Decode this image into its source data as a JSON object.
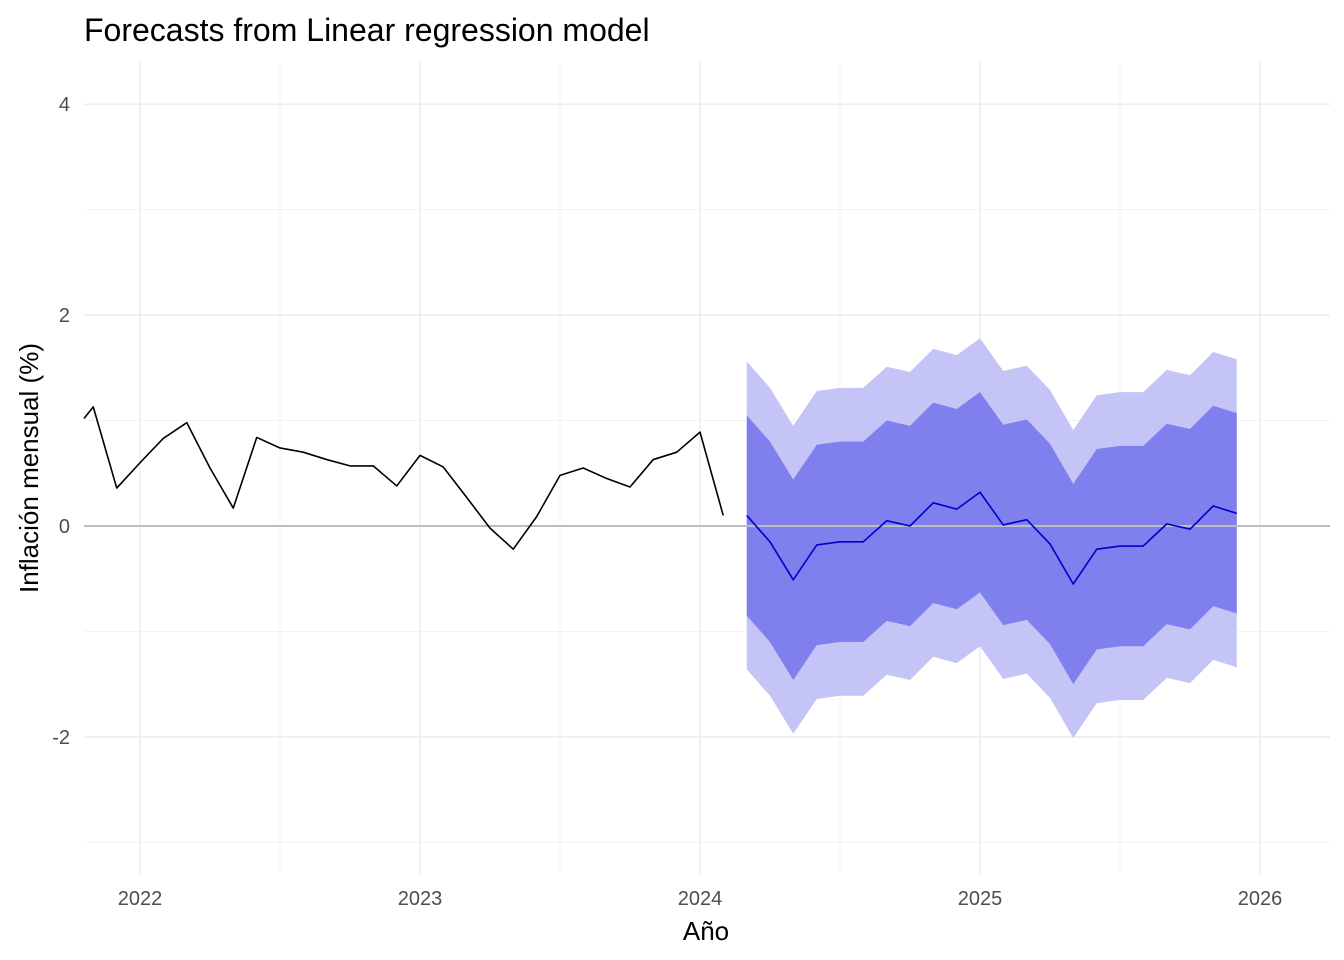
{
  "chart_data": {
    "type": "line",
    "title": "Forecasts from Linear regression model",
    "xlabel": "Año",
    "ylabel": "Inflación mensual (%)",
    "xlim": [
      2021.8,
      2026.25
    ],
    "ylim": [
      -3.3,
      4.4
    ],
    "x_ticks": [
      2022,
      2023,
      2024,
      2025,
      2026
    ],
    "x_tick_labels": [
      "2022",
      "2023",
      "2024",
      "2025",
      "2026"
    ],
    "y_ticks": [
      -2,
      0,
      2,
      4
    ],
    "y_tick_labels": [
      "-2",
      "0",
      "2",
      "4"
    ],
    "grid": true,
    "reference_line_y": 0,
    "colors": {
      "history": "#000000",
      "forecast_mean": "#0000cc",
      "band_80": "#7f7fee",
      "band_95": "#c4c4f6",
      "zero_line": "#bdbdbd"
    },
    "history": {
      "x": [
        2021.8,
        2021.833,
        2021.917,
        2022.0,
        2022.083,
        2022.167,
        2022.25,
        2022.333,
        2022.417,
        2022.5,
        2022.583,
        2022.667,
        2022.75,
        2022.833,
        2022.917,
        2023.0,
        2023.083,
        2023.167,
        2023.25,
        2023.333,
        2023.417,
        2023.5,
        2023.583,
        2023.667,
        2023.75,
        2023.833,
        2023.917,
        2024.0,
        2024.083
      ],
      "values": [
        1.02,
        1.13,
        0.36,
        0.6,
        0.83,
        0.98,
        0.55,
        0.17,
        0.84,
        0.74,
        0.7,
        0.63,
        0.57,
        0.57,
        0.38,
        0.67,
        0.56,
        0.27,
        -0.02,
        -0.22,
        0.09,
        0.48,
        0.55,
        0.45,
        0.37,
        0.63,
        0.7,
        0.89,
        0.1
      ]
    },
    "forecast": {
      "x": [
        2024.167,
        2024.25,
        2024.333,
        2024.417,
        2024.5,
        2024.583,
        2024.667,
        2024.75,
        2024.833,
        2024.917,
        2025.0,
        2025.083,
        2025.167,
        2025.25,
        2025.333,
        2025.417,
        2025.5,
        2025.583,
        2025.667,
        2025.75,
        2025.833,
        2025.917
      ],
      "mean": [
        0.1,
        -0.15,
        -0.51,
        -0.18,
        -0.15,
        -0.15,
        0.05,
        0.0,
        0.22,
        0.16,
        0.32,
        0.01,
        0.06,
        -0.17,
        -0.55,
        -0.22,
        -0.19,
        -0.19,
        0.02,
        -0.03,
        0.19,
        0.12
      ],
      "lo80": [
        -0.85,
        -1.1,
        -1.46,
        -1.13,
        -1.1,
        -1.1,
        -0.9,
        -0.95,
        -0.73,
        -0.79,
        -0.63,
        -0.94,
        -0.89,
        -1.12,
        -1.5,
        -1.17,
        -1.14,
        -1.14,
        -0.93,
        -0.98,
        -0.76,
        -0.83
      ],
      "hi80": [
        1.05,
        0.8,
        0.44,
        0.77,
        0.8,
        0.8,
        1.0,
        0.95,
        1.17,
        1.11,
        1.27,
        0.96,
        1.01,
        0.78,
        0.4,
        0.73,
        0.76,
        0.76,
        0.97,
        0.92,
        1.14,
        1.07
      ],
      "lo95": [
        -1.36,
        -1.61,
        -1.97,
        -1.64,
        -1.61,
        -1.61,
        -1.41,
        -1.46,
        -1.24,
        -1.3,
        -1.14,
        -1.45,
        -1.4,
        -1.63,
        -2.01,
        -1.68,
        -1.65,
        -1.65,
        -1.44,
        -1.49,
        -1.27,
        -1.34
      ],
      "hi95": [
        1.56,
        1.31,
        0.95,
        1.28,
        1.31,
        1.31,
        1.51,
        1.46,
        1.68,
        1.62,
        1.78,
        1.47,
        1.52,
        1.29,
        0.91,
        1.24,
        1.27,
        1.27,
        1.48,
        1.43,
        1.65,
        1.58
      ]
    }
  }
}
